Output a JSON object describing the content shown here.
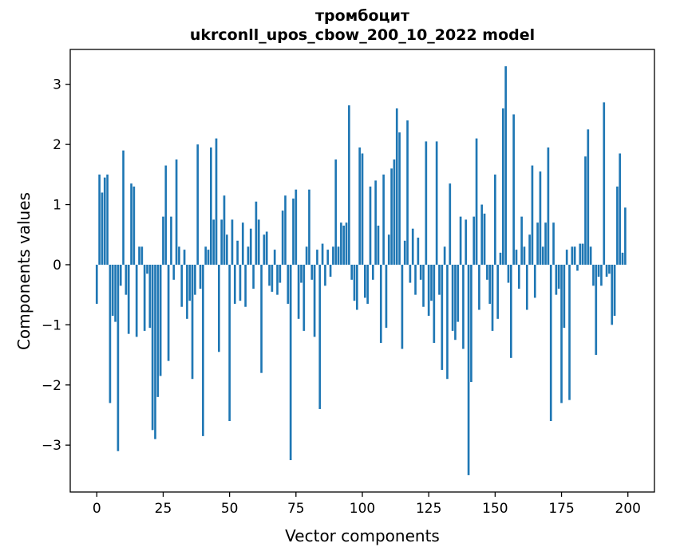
{
  "figure": {
    "title_line1": "тромбоцит",
    "title_line2": "ukrconll_upos_cbow_200_10_2022 model",
    "xlabel": "Vector components",
    "ylabel": "Components values"
  },
  "chart_data": {
    "type": "bar",
    "title": "тромбоцит",
    "subtitle": "ukrconll_upos_cbow_200_10_2022 model",
    "xlabel": "Vector components",
    "ylabel": "Components values",
    "bar_color": "#1f77b4",
    "frame_color": "#000000",
    "legend": "none",
    "grid": false,
    "xlim": [
      -10,
      210
    ],
    "ylim": [
      -3.78,
      3.58
    ],
    "x_ticks": [
      0,
      25,
      50,
      75,
      100,
      125,
      150,
      175,
      200
    ],
    "y_ticks": [
      -3,
      -2,
      -1,
      0,
      1,
      2,
      3
    ],
    "x_start": 0,
    "values": [
      -0.65,
      1.5,
      1.2,
      1.45,
      1.5,
      -2.3,
      -0.85,
      -0.95,
      -3.1,
      -0.35,
      1.9,
      -0.5,
      -1.15,
      1.35,
      1.3,
      -1.2,
      0.3,
      0.3,
      -1.1,
      -0.15,
      -1.05,
      -2.75,
      -2.9,
      -2.2,
      -1.85,
      0.8,
      1.65,
      -1.6,
      0.8,
      -0.25,
      1.75,
      0.3,
      -0.7,
      0.25,
      -0.9,
      -0.6,
      -1.9,
      -0.5,
      2.0,
      -0.4,
      -2.85,
      0.3,
      0.25,
      1.95,
      0.75,
      2.1,
      -1.45,
      0.75,
      1.15,
      0.5,
      -2.6,
      0.75,
      -0.65,
      0.4,
      -0.6,
      0.7,
      -0.7,
      0.3,
      0.6,
      -0.4,
      1.05,
      0.75,
      -1.8,
      0.5,
      0.55,
      -0.35,
      -0.45,
      0.25,
      -0.5,
      -0.3,
      0.9,
      1.15,
      -0.65,
      -3.25,
      1.1,
      1.25,
      -0.9,
      -0.3,
      -1.1,
      0.3,
      1.25,
      -0.25,
      -1.2,
      0.25,
      -2.4,
      0.35,
      -0.35,
      0.25,
      -0.2,
      0.3,
      1.75,
      0.3,
      0.7,
      0.65,
      0.7,
      2.65,
      -0.25,
      -0.6,
      -0.75,
      1.95,
      1.85,
      -0.55,
      -0.65,
      1.3,
      -0.25,
      1.4,
      0.65,
      -1.3,
      1.5,
      -1.05,
      0.5,
      1.6,
      1.75,
      2.6,
      2.2,
      -1.4,
      0.4,
      2.4,
      -0.3,
      0.6,
      -0.5,
      0.45,
      -0.25,
      -0.7,
      2.05,
      -0.85,
      -0.6,
      -1.3,
      2.05,
      -0.5,
      -1.75,
      0.3,
      -1.9,
      1.35,
      -1.1,
      -1.25,
      -0.95,
      0.8,
      -1.4,
      0.75,
      -3.5,
      -1.95,
      0.8,
      2.1,
      -0.75,
      1.0,
      0.85,
      -0.25,
      -0.65,
      -1.1,
      1.5,
      -0.9,
      0.2,
      2.6,
      3.3,
      -0.3,
      -1.55,
      2.5,
      0.25,
      -0.4,
      0.8,
      0.3,
      -0.75,
      0.5,
      1.65,
      -0.55,
      0.7,
      1.55,
      0.3,
      0.7,
      1.95,
      -2.6,
      0.7,
      -0.5,
      -0.4,
      -2.3,
      -1.05,
      0.25,
      -2.25,
      0.3,
      0.3,
      -0.1,
      0.35,
      0.35,
      1.8,
      2.25,
      0.3,
      -0.35,
      -1.5,
      -0.2,
      -0.35,
      2.7,
      -0.2,
      -0.15,
      -1.0,
      -0.85,
      1.3,
      1.85,
      0.2,
      0.95
    ]
  }
}
